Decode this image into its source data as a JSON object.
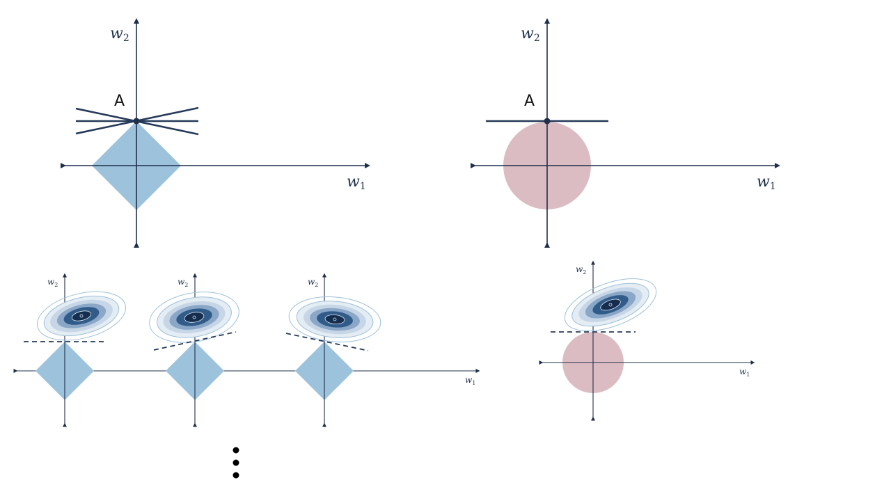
{
  "colors": {
    "axis": "#1f2f4a",
    "diamond": "#9cc2dc",
    "circle": "#dcbcc3",
    "contour_outer": "#9dc0d8",
    "contour_mid": "#4e79a7",
    "contour_core": "#152d4f",
    "dots": "#000000"
  },
  "axis_labels": {
    "w1": "w",
    "w1_sub": "1",
    "w2": "w",
    "w2_sub": "2"
  },
  "top_left": {
    "point_label": "A",
    "constraint": "diamond",
    "tangent_count": 3
  },
  "top_right": {
    "point_label": "A",
    "constraint": "circle",
    "tangent_count": 1
  },
  "bottom_left_panels": [
    {
      "constraint": "diamond",
      "tangent": "horizontal-dashed"
    },
    {
      "constraint": "diamond",
      "tangent": "rising-dashed"
    },
    {
      "constraint": "diamond",
      "tangent": "falling-dashed"
    }
  ],
  "bottom_right_panel": {
    "constraint": "circle",
    "tangent": "horizontal-dashed"
  },
  "continuation": "vertical-ellipsis"
}
